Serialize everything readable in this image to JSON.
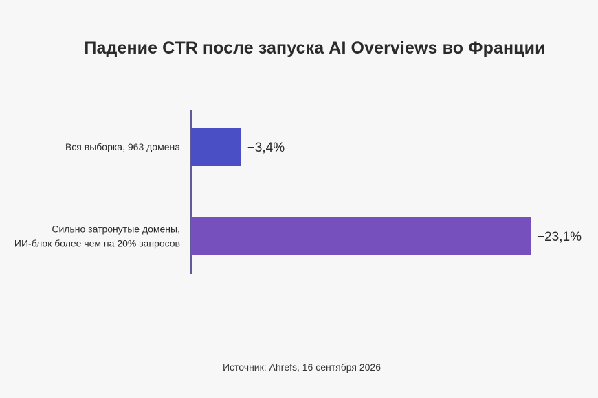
{
  "chart_data": {
    "type": "bar",
    "orientation": "horizontal",
    "title": "Падение CTR после запуска AI Overviews во Франции",
    "categories": [
      [
        "Вся выборка, 963 домена"
      ],
      [
        "Сильно затронутые домены,",
        "ИИ-блок более чем на 20% запросов"
      ]
    ],
    "values": [
      -3.4,
      -23.1
    ],
    "value_labels": [
      "−3,4%",
      "−23,1%"
    ],
    "colors": [
      "#4a4fc6",
      "#7651bd"
    ],
    "xlim": [
      0,
      23.1
    ],
    "grid": false,
    "legend": "none"
  },
  "footer": {
    "source": "Источник: Ahrefs, 16 сентября 2026"
  }
}
